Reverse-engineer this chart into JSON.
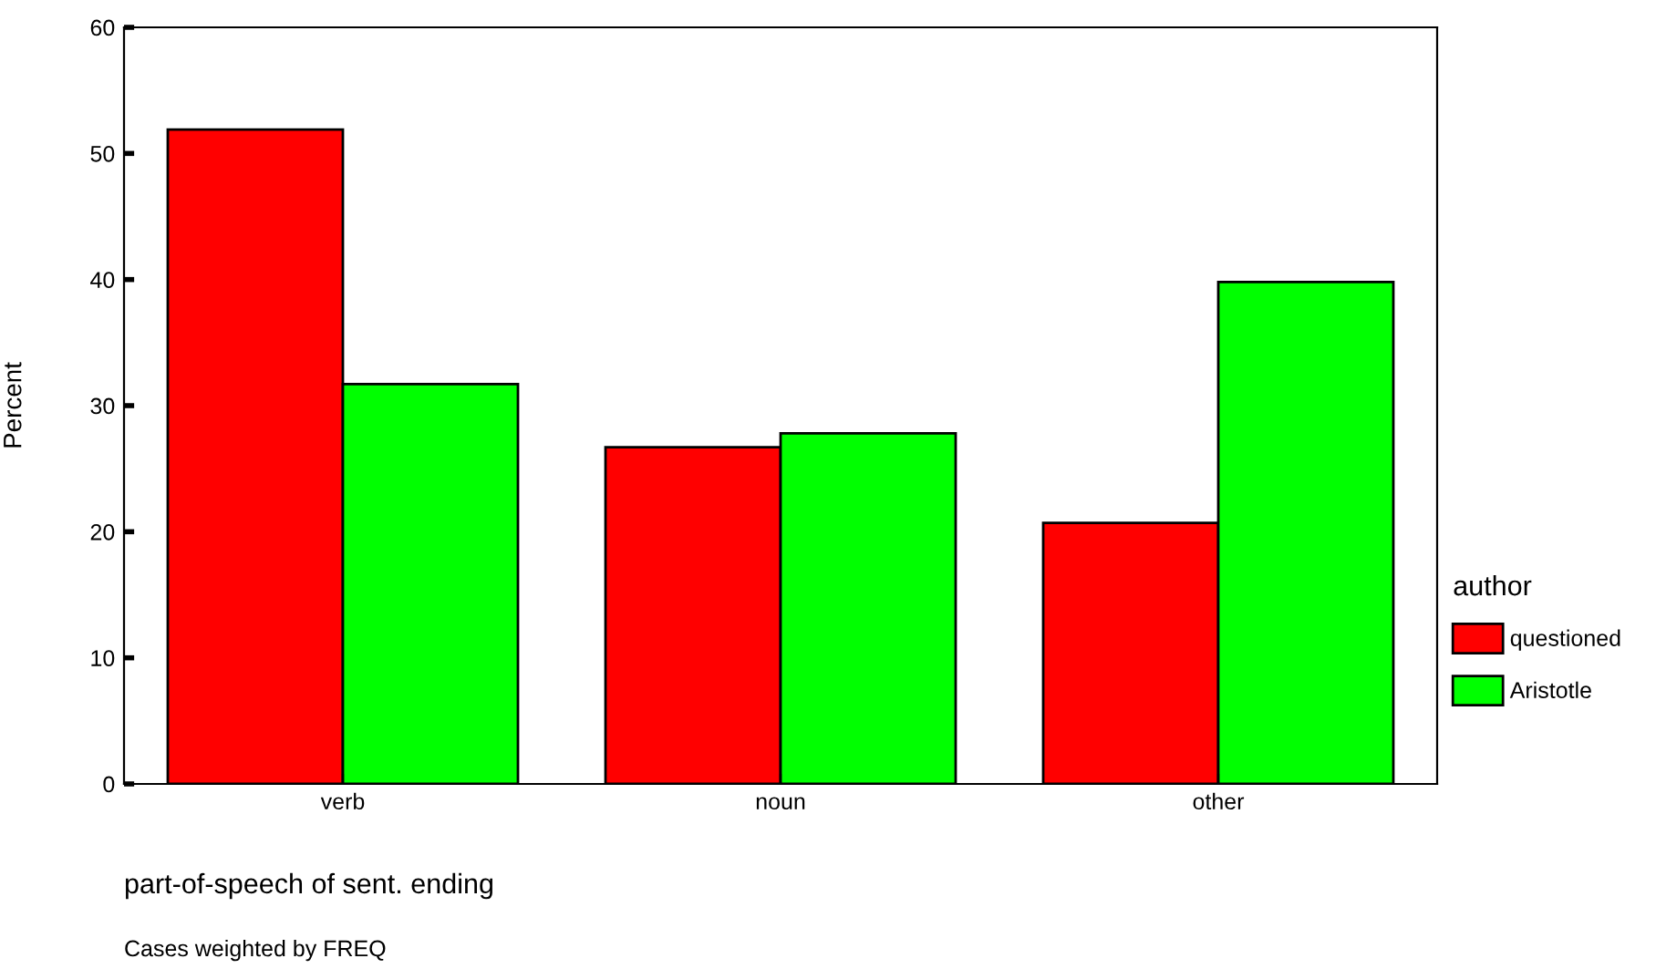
{
  "chart_data": {
    "type": "bar",
    "xlabel": "part-of-speech of sent. ending",
    "ylabel": "Percent",
    "legend_title": "author",
    "categories": [
      "verb",
      "noun",
      "other"
    ],
    "series": [
      {
        "name": "questioned",
        "color": "#ff0000",
        "values": [
          51.9,
          26.7,
          20.7
        ]
      },
      {
        "name": "Aristotle",
        "color": "#00ff00",
        "values": [
          31.7,
          27.8,
          39.8
        ]
      }
    ],
    "ylim": [
      0,
      60
    ],
    "yticks": [
      0,
      10,
      20,
      30,
      40,
      50,
      60
    ],
    "grid": false,
    "legend": "right",
    "annotations": [
      "Cases weighted by FREQ"
    ]
  }
}
